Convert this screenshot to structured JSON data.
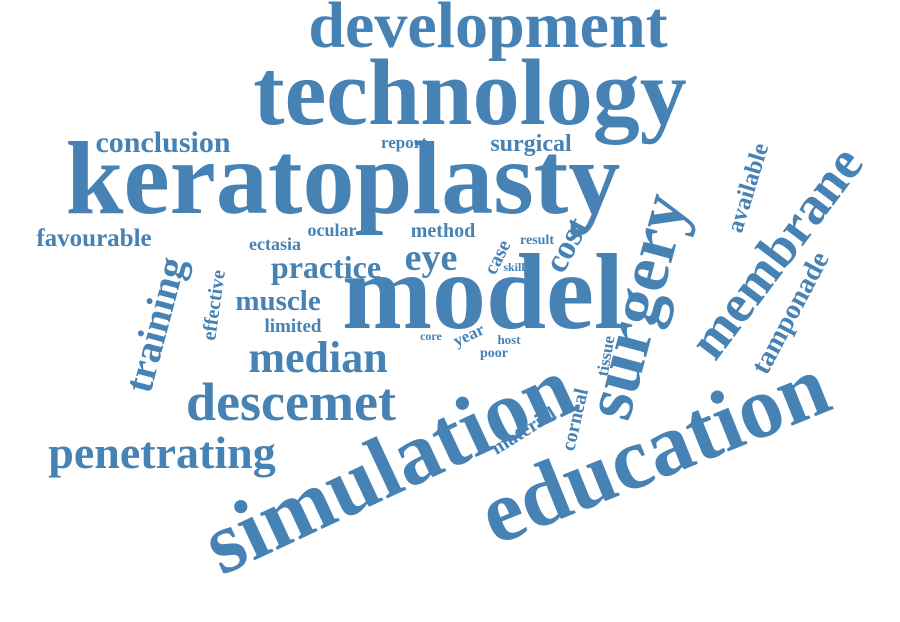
{
  "accent_color": "#4682B4",
  "words": {
    "development": "development",
    "technology": "technology",
    "keratoplasty": "keratoplasty",
    "conclusion": "conclusion",
    "report": "report",
    "surgical": "surgical",
    "favourable": "favourable",
    "ocular": "ocular",
    "method": "method",
    "result": "result",
    "ectasia": "ectasia",
    "practice": "practice",
    "eye": "eye",
    "case": "case",
    "cost": "cost",
    "skill": "skill",
    "model": "model",
    "surgery": "surgery",
    "membrane": "membrane",
    "available": "available",
    "tamponade": "tamponade",
    "training": "training",
    "effective": "effective",
    "muscle": "muscle",
    "limited": "limited",
    "core": "core",
    "year": "year",
    "host": "host",
    "poor": "poor",
    "median": "median",
    "descemet": "descemet",
    "penetrating": "penetrating",
    "simulation": "simulation",
    "material": "material",
    "corneal": "corneal",
    "tissue": "tissue",
    "education": "education"
  }
}
